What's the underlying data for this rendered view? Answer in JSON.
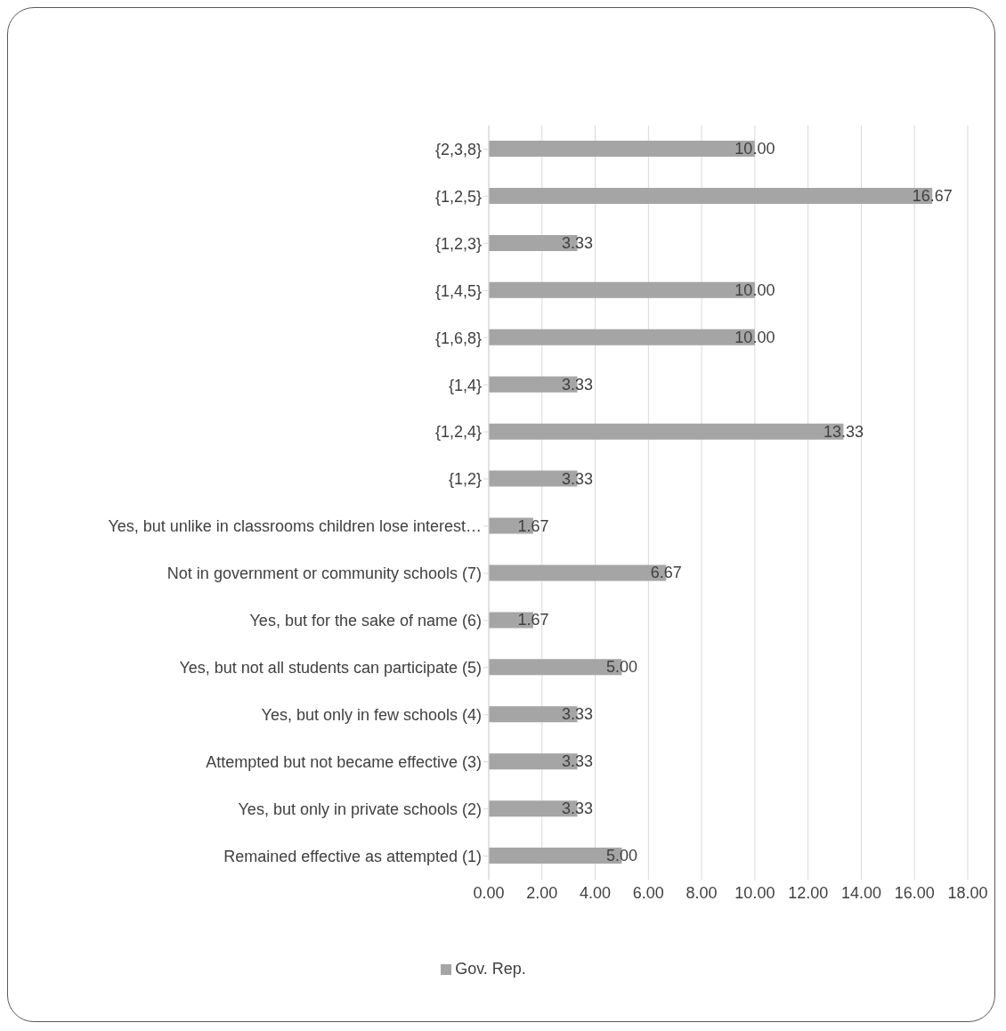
{
  "chart_data": {
    "type": "bar",
    "orientation": "horizontal",
    "categories": [
      "{2,3,8}",
      "{1,2,5}",
      "{1,2,3}",
      "{1,4,5}",
      "{1,6,8}",
      "{1,4}",
      "{1,2,4}",
      "{1,2}",
      "Yes, but unlike in classrooms children lose interest…",
      "Not in government or community schools (7)",
      "Yes, but for the sake of name (6)",
      "Yes, but not all students can participate (5)",
      "Yes, but only in few schools (4)",
      "Attempted but not became effective (3)",
      "Yes, but only in private schools (2)",
      "Remained effective as attempted (1)"
    ],
    "series": [
      {
        "name": "Gov. Rep.",
        "color": "#a5a5a5",
        "values": [
          10,
          16.67,
          3.33,
          10,
          10,
          3.33,
          13.33,
          3.33,
          1.67,
          6.67,
          1.67,
          5,
          3.33,
          3.33,
          3.33,
          5
        ],
        "value_labels": [
          "10.00",
          "16.67",
          "3.33",
          "10.00",
          "10.00",
          "3.33",
          "13.33",
          "3.33",
          "1.67",
          "6.67",
          "1.67",
          "5.00",
          "3.33",
          "3.33",
          "3.33",
          "5.00"
        ]
      }
    ],
    "xlim": [
      0,
      18
    ],
    "xticks": [
      {
        "value": 0,
        "label": "0.00"
      },
      {
        "value": 2,
        "label": "2.00"
      },
      {
        "value": 4,
        "label": "4.00"
      },
      {
        "value": 6,
        "label": "6.00"
      },
      {
        "value": 8,
        "label": "8.00"
      },
      {
        "value": 10,
        "label": "10.00"
      },
      {
        "value": 12,
        "label": "12.00"
      },
      {
        "value": 14,
        "label": "14.00"
      },
      {
        "value": 16,
        "label": "16.00"
      },
      {
        "value": 18,
        "label": "18.00"
      }
    ],
    "grid": "x",
    "legend": "bottom"
  }
}
